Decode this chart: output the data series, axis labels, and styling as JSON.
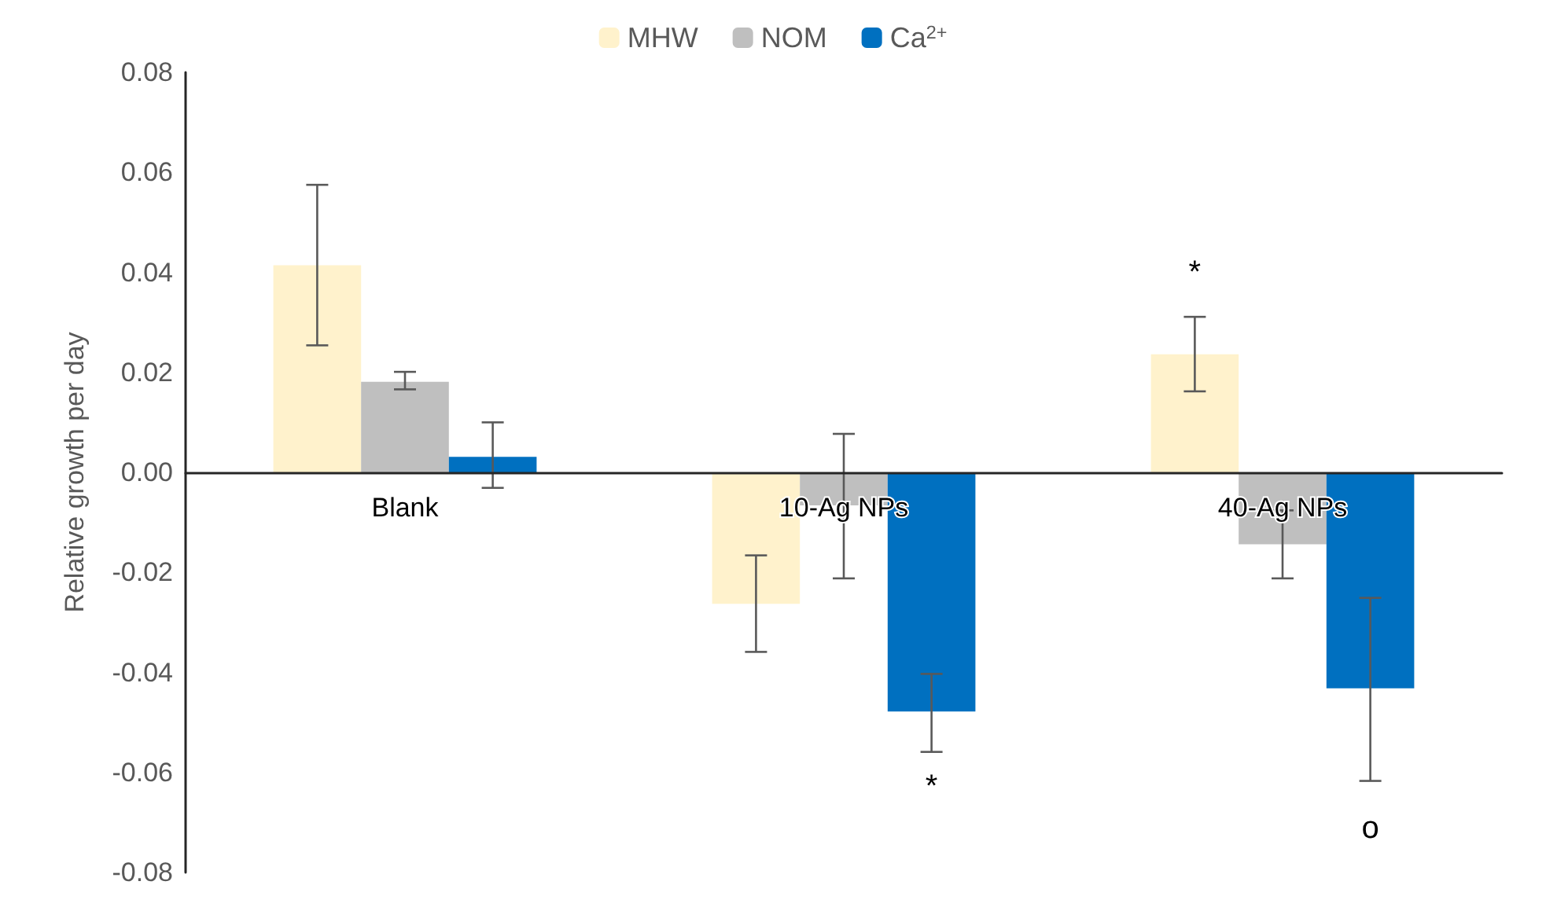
{
  "chart_data": {
    "type": "bar",
    "ylabel": "Relative growth per day",
    "categories": [
      "Blank",
      "10-Ag NPs",
      "40-Ag NPs"
    ],
    "series": [
      {
        "name": "MHW",
        "color": "#fff2cc",
        "values": [
          0.0414,
          -0.0263,
          0.0236
        ],
        "errors": [
          [
            0.0254,
            0.0575
          ],
          [
            -0.0359,
            -0.0166
          ],
          [
            0.0162,
            0.0311
          ]
        ]
      },
      {
        "name": "NOM",
        "color": "#bfbfbf",
        "values": [
          0.0181,
          -0.0066,
          -0.0144
        ],
        "errors": [
          [
            0.0166,
            0.0201
          ],
          [
            -0.0212,
            0.0077
          ],
          [
            -0.0212,
            -0.0076
          ]
        ]
      },
      {
        "name": "Ca$^{2+}$",
        "color": "#0070c0",
        "values": [
          0.0031,
          -0.0478,
          -0.0432
        ],
        "errors": [
          [
            -0.0031,
            0.01
          ],
          [
            -0.0559,
            -0.0403
          ],
          [
            -0.0617,
            -0.0251
          ]
        ]
      }
    ],
    "ylim": [
      -0.08,
      0.08
    ],
    "yticks": [
      -0.08,
      -0.06,
      -0.04,
      -0.02,
      {
        "value": 0,
        "label": "0.00"
      },
      0.02,
      0.04,
      0.06,
      0.08
    ],
    "legend": "top",
    "annotations": [
      "*",
      "*",
      "o"
    ]
  }
}
